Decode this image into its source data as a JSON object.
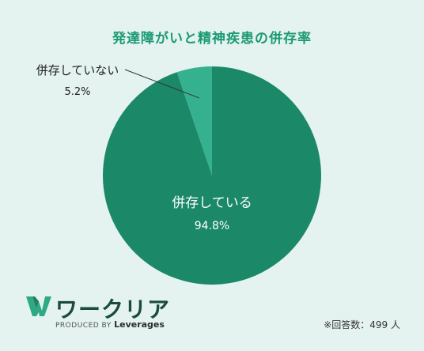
{
  "title": "発達障がいと精神疾患の併存率",
  "chart_data": {
    "type": "pie",
    "title": "発達障がいと精神疾患の併存率",
    "slices": [
      {
        "label": "併存している",
        "value": 94.8,
        "value_label": "94.8%",
        "color": "#1b8868"
      },
      {
        "label": "併存していない",
        "value": 5.2,
        "value_label": "5.2%",
        "color": "#36b18f"
      }
    ]
  },
  "brand": {
    "logo": "workclear-w-logo",
    "name": "ワークリア",
    "tagline_prefix": "PRODUCED BY",
    "tagline_company": "Leverages"
  },
  "footnote": "※回答数：499 人",
  "colors": {
    "background": "#e4f3f0",
    "title": "#1c9a74",
    "label_inside": "#ffffff",
    "label_outside": "#222222"
  }
}
